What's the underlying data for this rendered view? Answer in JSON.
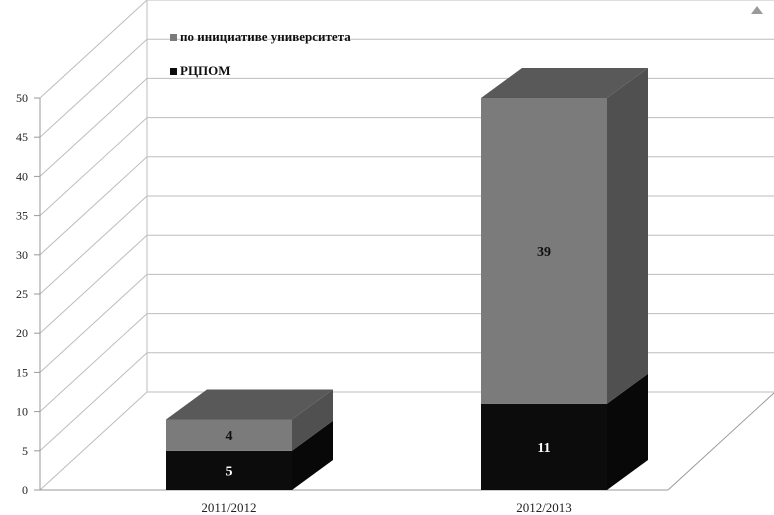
{
  "chart_data": {
    "type": "bar",
    "stacked": true,
    "three_d": true,
    "categories": [
      "2011/2012",
      "2012/2013"
    ],
    "series": [
      {
        "name": "РЦПОМ",
        "values": [
          5,
          11
        ],
        "color": "#0c0c0c",
        "label_color": "#ffffff"
      },
      {
        "name": "по инициативе университета",
        "values": [
          4,
          39
        ],
        "color": "#7b7b7b",
        "label_color": "#111111"
      }
    ],
    "ylim": [
      0,
      50
    ],
    "yticks": [
      0,
      5,
      10,
      15,
      20,
      25,
      30,
      35,
      40,
      45,
      50
    ],
    "grid": true,
    "legend_position": "top-left",
    "legend_order": [
      "по инициативе университета",
      "РЦПОМ"
    ]
  }
}
